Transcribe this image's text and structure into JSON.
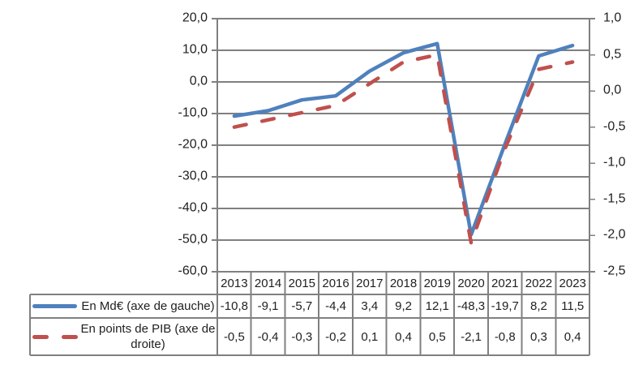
{
  "chart_data": {
    "type": "line",
    "title": "",
    "categories": [
      "2013",
      "2014",
      "2015",
      "2016",
      "2017",
      "2018",
      "2019",
      "2020",
      "2021",
      "2022",
      "2023"
    ],
    "series": [
      {
        "name": "En Md€ (axe de gauche)",
        "axis": "left",
        "color": "#4F81BD",
        "line_style": "solid",
        "values": [
          -10.8,
          -9.1,
          -5.7,
          -4.4,
          3.4,
          9.2,
          12.1,
          -48.3,
          -19.7,
          8.2,
          11.5
        ],
        "display_values": [
          "-10,8",
          "-9,1",
          "-5,7",
          "-4,4",
          "3,4",
          "9,2",
          "12,1",
          "-48,3",
          "-19,7",
          "8,2",
          "11,5"
        ]
      },
      {
        "name": "En points de PIB (axe de droite)",
        "axis": "right",
        "color": "#C0504D",
        "line_style": "dashed",
        "values": [
          -0.5,
          -0.4,
          -0.3,
          -0.2,
          0.1,
          0.4,
          0.5,
          -2.1,
          -0.8,
          0.3,
          0.4
        ],
        "display_values": [
          "-0,5",
          "-0,4",
          "-0,3",
          "-0,2",
          "0,1",
          "0,4",
          "0,5",
          "-2,1",
          "-0,8",
          "0,3",
          "0,4"
        ]
      }
    ],
    "left_axis": {
      "max": 20,
      "min": -60,
      "step": 10,
      "tick_labels": [
        "20,0",
        "10,0",
        "0,0",
        "-10,0",
        "-20,0",
        "-30,0",
        "-40,0",
        "-50,0",
        "-60,0"
      ]
    },
    "right_axis": {
      "max": 1.0,
      "min": -2.5,
      "step": 0.5,
      "tick_labels": [
        "1,0",
        "0,5",
        "0,0",
        "-0,5",
        "-1,0",
        "-1,5",
        "-2,0",
        "-2,5"
      ]
    },
    "grid": true,
    "legend_position": "bottom-left-of-data-table"
  },
  "colors": {
    "series_1": "#4F81BD",
    "series_2": "#C0504D",
    "grid_and_borders": "#808080",
    "text": "#1f1f1f",
    "background": "#ffffff"
  }
}
